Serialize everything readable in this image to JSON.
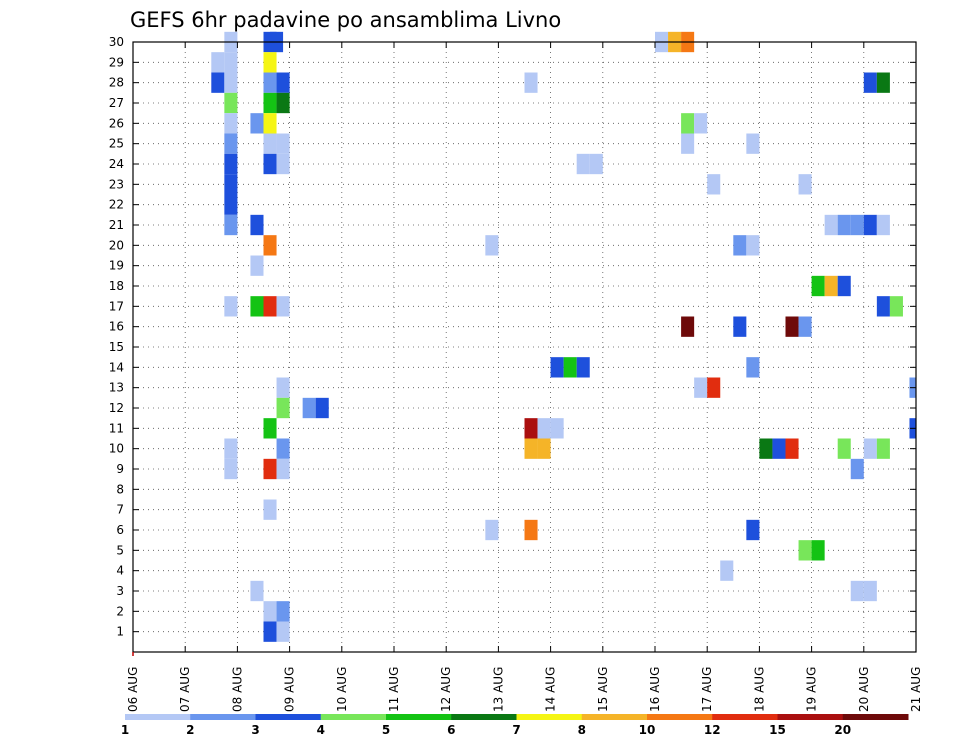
{
  "chart_data": {
    "type": "heatmap",
    "title": "GEFS 6hr padavine po ansamblima Livno",
    "xlabel": "",
    "ylabel": "",
    "x_ticks": [
      "06 AUG",
      "07 AUG",
      "08 AUG",
      "09 AUG",
      "10 AUG",
      "11 AUG",
      "12 AUG",
      "13 AUG",
      "14 AUG",
      "15 AUG",
      "16 AUG",
      "17 AUG",
      "18 AUG",
      "19 AUG",
      "20 AUG",
      "21 AUG"
    ],
    "y_ticks": [
      "1",
      "2",
      "3",
      "4",
      "5",
      "6",
      "7",
      "8",
      "9",
      "10",
      "11",
      "12",
      "13",
      "14",
      "15",
      "16",
      "17",
      "18",
      "19",
      "20",
      "21",
      "22",
      "23",
      "24",
      "25",
      "26",
      "27",
      "28",
      "29",
      "30"
    ],
    "xlim_days": [
      0,
      15
    ],
    "ylim": [
      0,
      30
    ],
    "grid": true,
    "colorbar": {
      "labels": [
        "1",
        "2",
        "3",
        "4",
        "5",
        "6",
        "7",
        "8",
        "10",
        "12",
        "15",
        "20"
      ],
      "colors": [
        "#b4c8f5",
        "#6a96ee",
        "#1e50dc",
        "#78e65a",
        "#14c314",
        "#0a7814",
        "#f5f514",
        "#f5b428",
        "#f57814",
        "#e12d0f",
        "#aa0f0f",
        "#6e0a0a"
      ]
    },
    "cells": [
      {
        "day": 1.75,
        "member": 30,
        "cat": 1
      },
      {
        "day": 2.5,
        "member": 30,
        "cat": 3
      },
      {
        "day": 2.625,
        "member": 30,
        "cat": 3
      },
      {
        "day": 10.0,
        "member": 30,
        "cat": 1
      },
      {
        "day": 10.25,
        "member": 30,
        "cat": 8
      },
      {
        "day": 10.5,
        "member": 30,
        "cat": 9
      },
      {
        "day": 1.5,
        "member": 29,
        "cat": 1
      },
      {
        "day": 1.75,
        "member": 29,
        "cat": 1
      },
      {
        "day": 2.5,
        "member": 29,
        "cat": 7
      },
      {
        "day": 1.5,
        "member": 28,
        "cat": 3
      },
      {
        "day": 1.75,
        "member": 28,
        "cat": 1
      },
      {
        "day": 2.5,
        "member": 28,
        "cat": 2
      },
      {
        "day": 2.75,
        "member": 28,
        "cat": 3
      },
      {
        "day": 7.5,
        "member": 28,
        "cat": 1
      },
      {
        "day": 14.0,
        "member": 28,
        "cat": 3
      },
      {
        "day": 14.25,
        "member": 28,
        "cat": 6
      },
      {
        "day": 1.75,
        "member": 27,
        "cat": 4
      },
      {
        "day": 2.5,
        "member": 27,
        "cat": 5
      },
      {
        "day": 2.75,
        "member": 27,
        "cat": 6
      },
      {
        "day": 1.75,
        "member": 26,
        "cat": 1
      },
      {
        "day": 2.25,
        "member": 26,
        "cat": 2
      },
      {
        "day": 2.5,
        "member": 26,
        "cat": 7
      },
      {
        "day": 10.5,
        "member": 26,
        "cat": 4
      },
      {
        "day": 10.75,
        "member": 26,
        "cat": 1
      },
      {
        "day": 1.75,
        "member": 25,
        "cat": 2
      },
      {
        "day": 2.5,
        "member": 25,
        "cat": 1
      },
      {
        "day": 2.75,
        "member": 25,
        "cat": 1
      },
      {
        "day": 10.5,
        "member": 25,
        "cat": 1
      },
      {
        "day": 11.75,
        "member": 25,
        "cat": 1
      },
      {
        "day": 1.75,
        "member": 24,
        "cat": 3
      },
      {
        "day": 2.5,
        "member": 24,
        "cat": 3
      },
      {
        "day": 2.75,
        "member": 24,
        "cat": 1
      },
      {
        "day": 8.5,
        "member": 24,
        "cat": 1
      },
      {
        "day": 8.75,
        "member": 24,
        "cat": 1
      },
      {
        "day": 1.75,
        "member": 23,
        "cat": 3
      },
      {
        "day": 11.0,
        "member": 23,
        "cat": 1
      },
      {
        "day": 12.75,
        "member": 23,
        "cat": 1
      },
      {
        "day": 1.75,
        "member": 22,
        "cat": 3
      },
      {
        "day": 1.75,
        "member": 21,
        "cat": 2
      },
      {
        "day": 2.25,
        "member": 21,
        "cat": 3
      },
      {
        "day": 13.25,
        "member": 21,
        "cat": 1
      },
      {
        "day": 13.5,
        "member": 21,
        "cat": 2
      },
      {
        "day": 13.75,
        "member": 21,
        "cat": 2
      },
      {
        "day": 14.0,
        "member": 21,
        "cat": 3
      },
      {
        "day": 14.25,
        "member": 21,
        "cat": 1
      },
      {
        "day": 2.5,
        "member": 20,
        "cat": 9
      },
      {
        "day": 6.75,
        "member": 20,
        "cat": 1
      },
      {
        "day": 11.5,
        "member": 20,
        "cat": 2
      },
      {
        "day": 11.75,
        "member": 20,
        "cat": 1
      },
      {
        "day": 2.25,
        "member": 19,
        "cat": 1
      },
      {
        "day": 13.0,
        "member": 18,
        "cat": 5
      },
      {
        "day": 13.25,
        "member": 18,
        "cat": 8
      },
      {
        "day": 13.5,
        "member": 18,
        "cat": 3
      },
      {
        "day": 1.75,
        "member": 17,
        "cat": 1
      },
      {
        "day": 2.25,
        "member": 17,
        "cat": 5
      },
      {
        "day": 2.5,
        "member": 17,
        "cat": 10
      },
      {
        "day": 2.75,
        "member": 17,
        "cat": 1
      },
      {
        "day": 14.25,
        "member": 17,
        "cat": 3
      },
      {
        "day": 14.5,
        "member": 17,
        "cat": 4
      },
      {
        "day": 10.5,
        "member": 16,
        "cat": 12
      },
      {
        "day": 11.5,
        "member": 16,
        "cat": 3
      },
      {
        "day": 12.5,
        "member": 16,
        "cat": 12
      },
      {
        "day": 12.75,
        "member": 16,
        "cat": 2
      },
      {
        "day": 8.0,
        "member": 14,
        "cat": 3
      },
      {
        "day": 8.25,
        "member": 14,
        "cat": 5
      },
      {
        "day": 8.5,
        "member": 14,
        "cat": 3
      },
      {
        "day": 11.75,
        "member": 14,
        "cat": 2
      },
      {
        "day": 2.75,
        "member": 13,
        "cat": 1
      },
      {
        "day": 10.75,
        "member": 13,
        "cat": 1
      },
      {
        "day": 11.0,
        "member": 13,
        "cat": 10
      },
      {
        "day": 14.875,
        "member": 13,
        "cat": 2
      },
      {
        "day": 2.75,
        "member": 12,
        "cat": 4
      },
      {
        "day": 3.25,
        "member": 12,
        "cat": 2
      },
      {
        "day": 3.5,
        "member": 12,
        "cat": 3
      },
      {
        "day": 2.5,
        "member": 11,
        "cat": 5
      },
      {
        "day": 7.5,
        "member": 11,
        "cat": 11
      },
      {
        "day": 7.75,
        "member": 11,
        "cat": 1
      },
      {
        "day": 8.0,
        "member": 11,
        "cat": 1
      },
      {
        "day": 14.875,
        "member": 11,
        "cat": 3
      },
      {
        "day": 1.75,
        "member": 10,
        "cat": 1
      },
      {
        "day": 2.75,
        "member": 10,
        "cat": 2
      },
      {
        "day": 7.5,
        "member": 10,
        "cat": 8
      },
      {
        "day": 7.75,
        "member": 10,
        "cat": 8
      },
      {
        "day": 12.0,
        "member": 10,
        "cat": 6
      },
      {
        "day": 12.25,
        "member": 10,
        "cat": 3
      },
      {
        "day": 12.5,
        "member": 10,
        "cat": 10
      },
      {
        "day": 13.5,
        "member": 10,
        "cat": 4
      },
      {
        "day": 14.0,
        "member": 10,
        "cat": 1
      },
      {
        "day": 14.25,
        "member": 10,
        "cat": 4
      },
      {
        "day": 1.75,
        "member": 9,
        "cat": 1
      },
      {
        "day": 2.5,
        "member": 9,
        "cat": 10
      },
      {
        "day": 2.75,
        "member": 9,
        "cat": 1
      },
      {
        "day": 13.75,
        "member": 9,
        "cat": 2
      },
      {
        "day": 2.5,
        "member": 7,
        "cat": 1
      },
      {
        "day": 6.75,
        "member": 6,
        "cat": 1
      },
      {
        "day": 7.5,
        "member": 6,
        "cat": 9
      },
      {
        "day": 11.75,
        "member": 6,
        "cat": 3
      },
      {
        "day": 12.75,
        "member": 5,
        "cat": 4
      },
      {
        "day": 13.0,
        "member": 5,
        "cat": 5
      },
      {
        "day": 11.25,
        "member": 4,
        "cat": 1
      },
      {
        "day": 2.25,
        "member": 3,
        "cat": 1
      },
      {
        "day": 13.75,
        "member": 3,
        "cat": 1
      },
      {
        "day": 14.0,
        "member": 3,
        "cat": 1
      },
      {
        "day": 2.5,
        "member": 2,
        "cat": 1
      },
      {
        "day": 2.75,
        "member": 2,
        "cat": 2
      },
      {
        "day": 2.5,
        "member": 1,
        "cat": 3
      },
      {
        "day": 2.75,
        "member": 1,
        "cat": 1
      }
    ]
  }
}
